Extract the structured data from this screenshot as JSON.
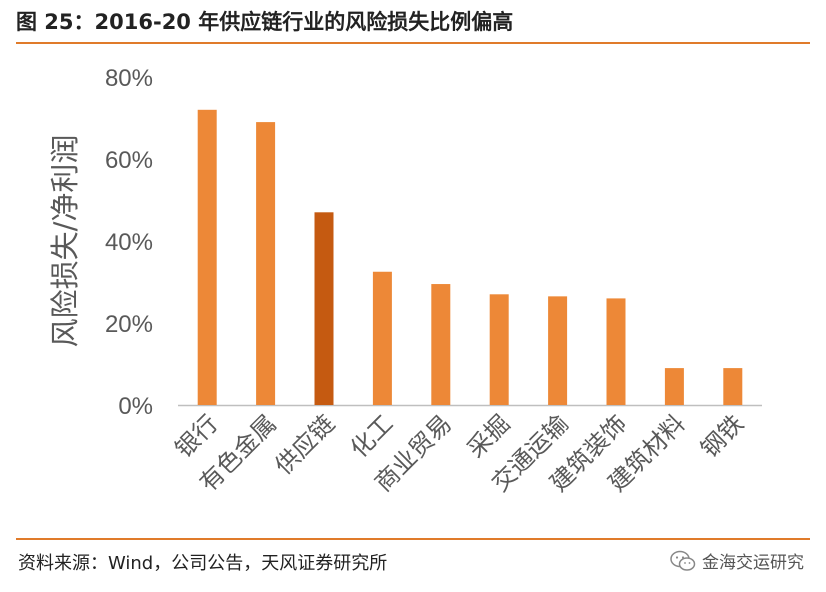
{
  "header": {
    "title": "图 25：2016-20 年供应链行业的风险损失比例偏高"
  },
  "footer": {
    "source": "资料来源：Wind，公司公告，天风证券研究所",
    "watermark": "金海交运研究"
  },
  "colors": {
    "bar": "#ed8837",
    "highlight": "#c55a11",
    "accent_line": "#e07b2a",
    "axis": "#bfbfbf"
  },
  "chart_data": {
    "type": "bar",
    "title": "",
    "xlabel": "",
    "ylabel": "风险损失/净利润",
    "categories": [
      "银行",
      "有色金属",
      "供应链",
      "化工",
      "商业贸易",
      "采掘",
      "交通运输",
      "建筑装饰",
      "建筑材料",
      "钢铁"
    ],
    "values": [
      72,
      69,
      47,
      32.5,
      29.5,
      27,
      26.5,
      26,
      9,
      9
    ],
    "highlight_index": 2,
    "ylim": [
      0,
      80
    ],
    "yticks": [
      "0%",
      "20%",
      "40%",
      "60%",
      "80%"
    ],
    "grid": false,
    "legend": "none"
  }
}
